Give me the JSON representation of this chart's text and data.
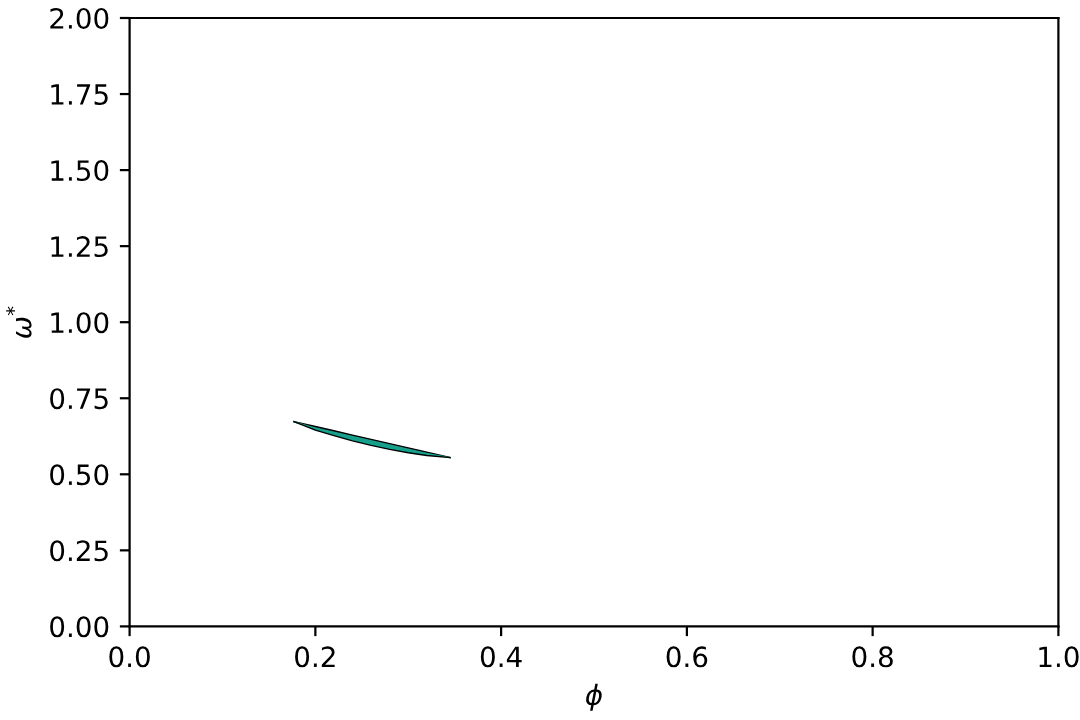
{
  "chart_data": {
    "type": "line",
    "xlabel": "ϕ",
    "ylabel": "ω$^{*}$",
    "series": [
      {
        "color": "#17a08c",
        "x": [
          0.177,
          0.2,
          0.22,
          0.24,
          0.26,
          0.28,
          0.3,
          0.32,
          0.345
        ],
        "values": [
          0.673,
          0.651,
          0.635,
          0.62,
          0.605,
          0.592,
          0.579,
          0.568,
          0.555
        ],
        "upper": [
          0.673,
          0.657,
          0.643,
          0.629,
          0.615,
          0.601,
          0.587,
          0.573,
          0.555
        ],
        "lower": [
          0.673,
          0.645,
          0.627,
          0.61,
          0.595,
          0.582,
          0.571,
          0.562,
          0.555
        ]
      }
    ],
    "xlim": [
      0,
      1
    ],
    "ylim": [
      0,
      2
    ],
    "xticks": [
      {
        "value": 0,
        "label": "0.0"
      },
      0.2,
      0.4,
      0.6,
      0.8,
      {
        "value": 1,
        "label": "1.0"
      }
    ],
    "yticks": [
      {
        "value": 0,
        "label": "0.00"
      },
      0.25,
      {
        "value": 0.5,
        "label": "0.50"
      },
      0.75,
      {
        "value": 1,
        "label": "1.00"
      },
      1.25,
      {
        "value": 1.5,
        "label": "1.50"
      },
      1.75,
      {
        "value": 2,
        "label": "2.00"
      }
    ],
    "grid": false,
    "legend": false
  }
}
